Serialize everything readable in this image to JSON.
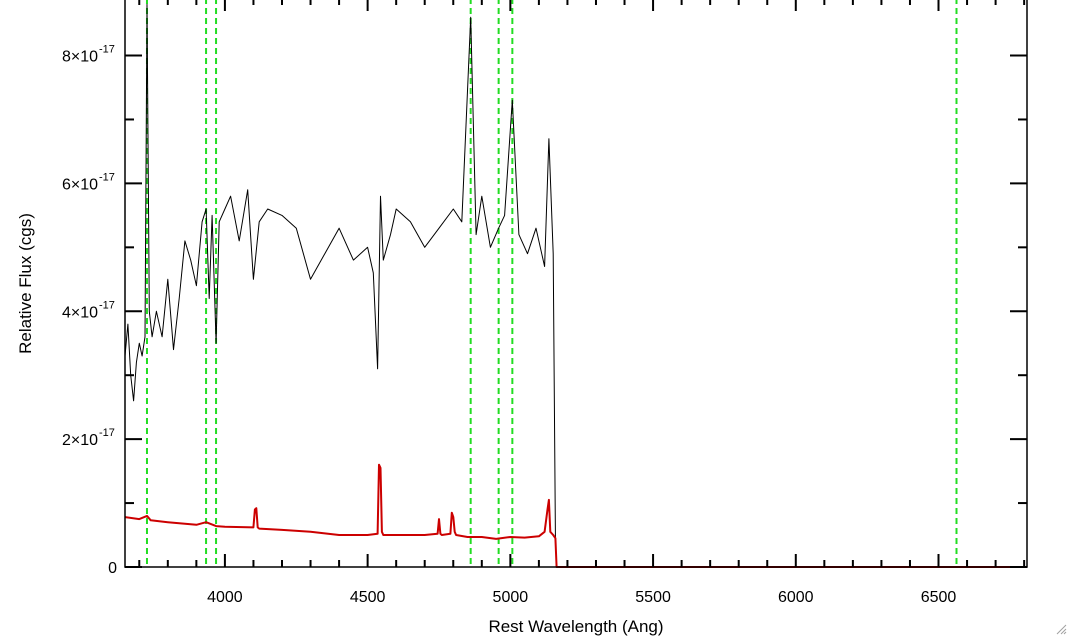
{
  "chart_data": {
    "type": "line",
    "title": "",
    "xlabel": "Rest Wavelength (Ang)",
    "ylabel": "Relative Flux (cgs)",
    "xlim": [
      3650,
      6810
    ],
    "ylim": [
      0,
      8.9e-17
    ],
    "grid": false,
    "legend": "none",
    "x_ticks": [
      {
        "value": 4000,
        "label": "4000"
      },
      {
        "value": 4500,
        "label": "4500"
      },
      {
        "value": 5000,
        "label": "5000"
      },
      {
        "value": 5500,
        "label": "5500"
      },
      {
        "value": 6000,
        "label": "6000"
      },
      {
        "value": 6500,
        "label": "6500"
      }
    ],
    "y_ticks": [
      {
        "value": 0,
        "mantissa": "0",
        "exponent": ""
      },
      {
        "value": 2e-17,
        "mantissa": "2×10",
        "exponent": "-17"
      },
      {
        "value": 4e-17,
        "mantissa": "4×10",
        "exponent": "-17"
      },
      {
        "value": 6e-17,
        "mantissa": "6×10",
        "exponent": "-17"
      },
      {
        "value": 8e-17,
        "mantissa": "8×10",
        "exponent": "-17"
      }
    ],
    "x_minor_step": 100,
    "y_minor_step": 1e-17,
    "vertical_lines": {
      "color": "#22dd22",
      "style": "dashed",
      "x": [
        3727,
        3934,
        3969,
        4861,
        4959,
        5007,
        6563
      ]
    },
    "series": [
      {
        "color": "#000000",
        "x": [
          3650,
          3660,
          3670,
          3680,
          3690,
          3700,
          3710,
          3720,
          3727,
          3735,
          3745,
          3760,
          3780,
          3800,
          3820,
          3840,
          3860,
          3880,
          3900,
          3920,
          3934,
          3945,
          3955,
          3969,
          3980,
          4000,
          4020,
          4050,
          4080,
          4100,
          4120,
          4150,
          4200,
          4250,
          4300,
          4350,
          4400,
          4450,
          4500,
          4520,
          4535,
          4545,
          4555,
          4580,
          4600,
          4650,
          4700,
          4750,
          4800,
          4830,
          4861,
          4880,
          4900,
          4930,
          4959,
          4980,
          5007,
          5030,
          5060,
          5090,
          5120,
          5135,
          5150,
          5158,
          5162
        ],
        "y": [
          3.3e-17,
          3.8e-17,
          3e-17,
          2.6e-17,
          3.2e-17,
          3.5e-17,
          3.3e-17,
          3.6e-17,
          8.8e-17,
          4e-17,
          3.6e-17,
          4e-17,
          3.6e-17,
          4.5e-17,
          3.4e-17,
          4.2e-17,
          5.1e-17,
          4.8e-17,
          4.4e-17,
          5.4e-17,
          5.6e-17,
          4.2e-17,
          5.5e-17,
          3.5e-17,
          5.4e-17,
          5.6e-17,
          5.8e-17,
          5.1e-17,
          5.9e-17,
          4.5e-17,
          5.4e-17,
          5.6e-17,
          5.5e-17,
          5.3e-17,
          4.5e-17,
          4.9e-17,
          5.3e-17,
          4.8e-17,
          5e-17,
          4.6e-17,
          3.1e-17,
          5.8e-17,
          4.8e-17,
          5.2e-17,
          5.6e-17,
          5.4e-17,
          5e-17,
          5.3e-17,
          5.6e-17,
          5.4e-17,
          8.6e-17,
          5.2e-17,
          5.8e-17,
          5e-17,
          5.3e-17,
          5.5e-17,
          7.3e-17,
          5.2e-17,
          4.9e-17,
          5.3e-17,
          4.7e-17,
          6.7e-17,
          4.9e-17,
          5e-18,
          0
        ]
      },
      {
        "color": "#cc0000",
        "x": [
          3650,
          3700,
          3727,
          3740,
          3800,
          3900,
          3934,
          3969,
          4000,
          4100,
          4105,
          4110,
          4115,
          4120,
          4200,
          4300,
          4400,
          4500,
          4535,
          4540,
          4545,
          4550,
          4555,
          4600,
          4700,
          4745,
          4750,
          4755,
          4760,
          4790,
          4795,
          4800,
          4805,
          4810,
          4850,
          4900,
          4950,
          5000,
          5050,
          5100,
          5120,
          5130,
          5135,
          5140,
          5150,
          5158,
          5162,
          5200,
          5500,
          6000,
          6500,
          6810
        ],
        "y": [
          7.8e-18,
          7.5e-18,
          8e-18,
          7.3e-18,
          7e-18,
          6.6e-18,
          7e-18,
          6.4e-18,
          6.3e-18,
          6.2e-18,
          9e-18,
          9.2e-18,
          6.2e-18,
          6e-18,
          5.8e-18,
          5.5e-18,
          5e-18,
          5e-18,
          5.2e-18,
          1.6e-17,
          1.55e-17,
          5.5e-18,
          5e-18,
          5e-18,
          5e-18,
          5.2e-18,
          7.5e-18,
          5.2e-18,
          5e-18,
          5.2e-18,
          8.5e-18,
          7.8e-18,
          5.5e-18,
          5e-18,
          4.7e-18,
          4.7e-18,
          4.4e-18,
          4.7e-18,
          4.6e-18,
          4.8e-18,
          5.5e-18,
          9e-18,
          1.05e-17,
          5.5e-18,
          5e-18,
          4.5e-18,
          0,
          0,
          0,
          0,
          0,
          0
        ]
      }
    ]
  }
}
